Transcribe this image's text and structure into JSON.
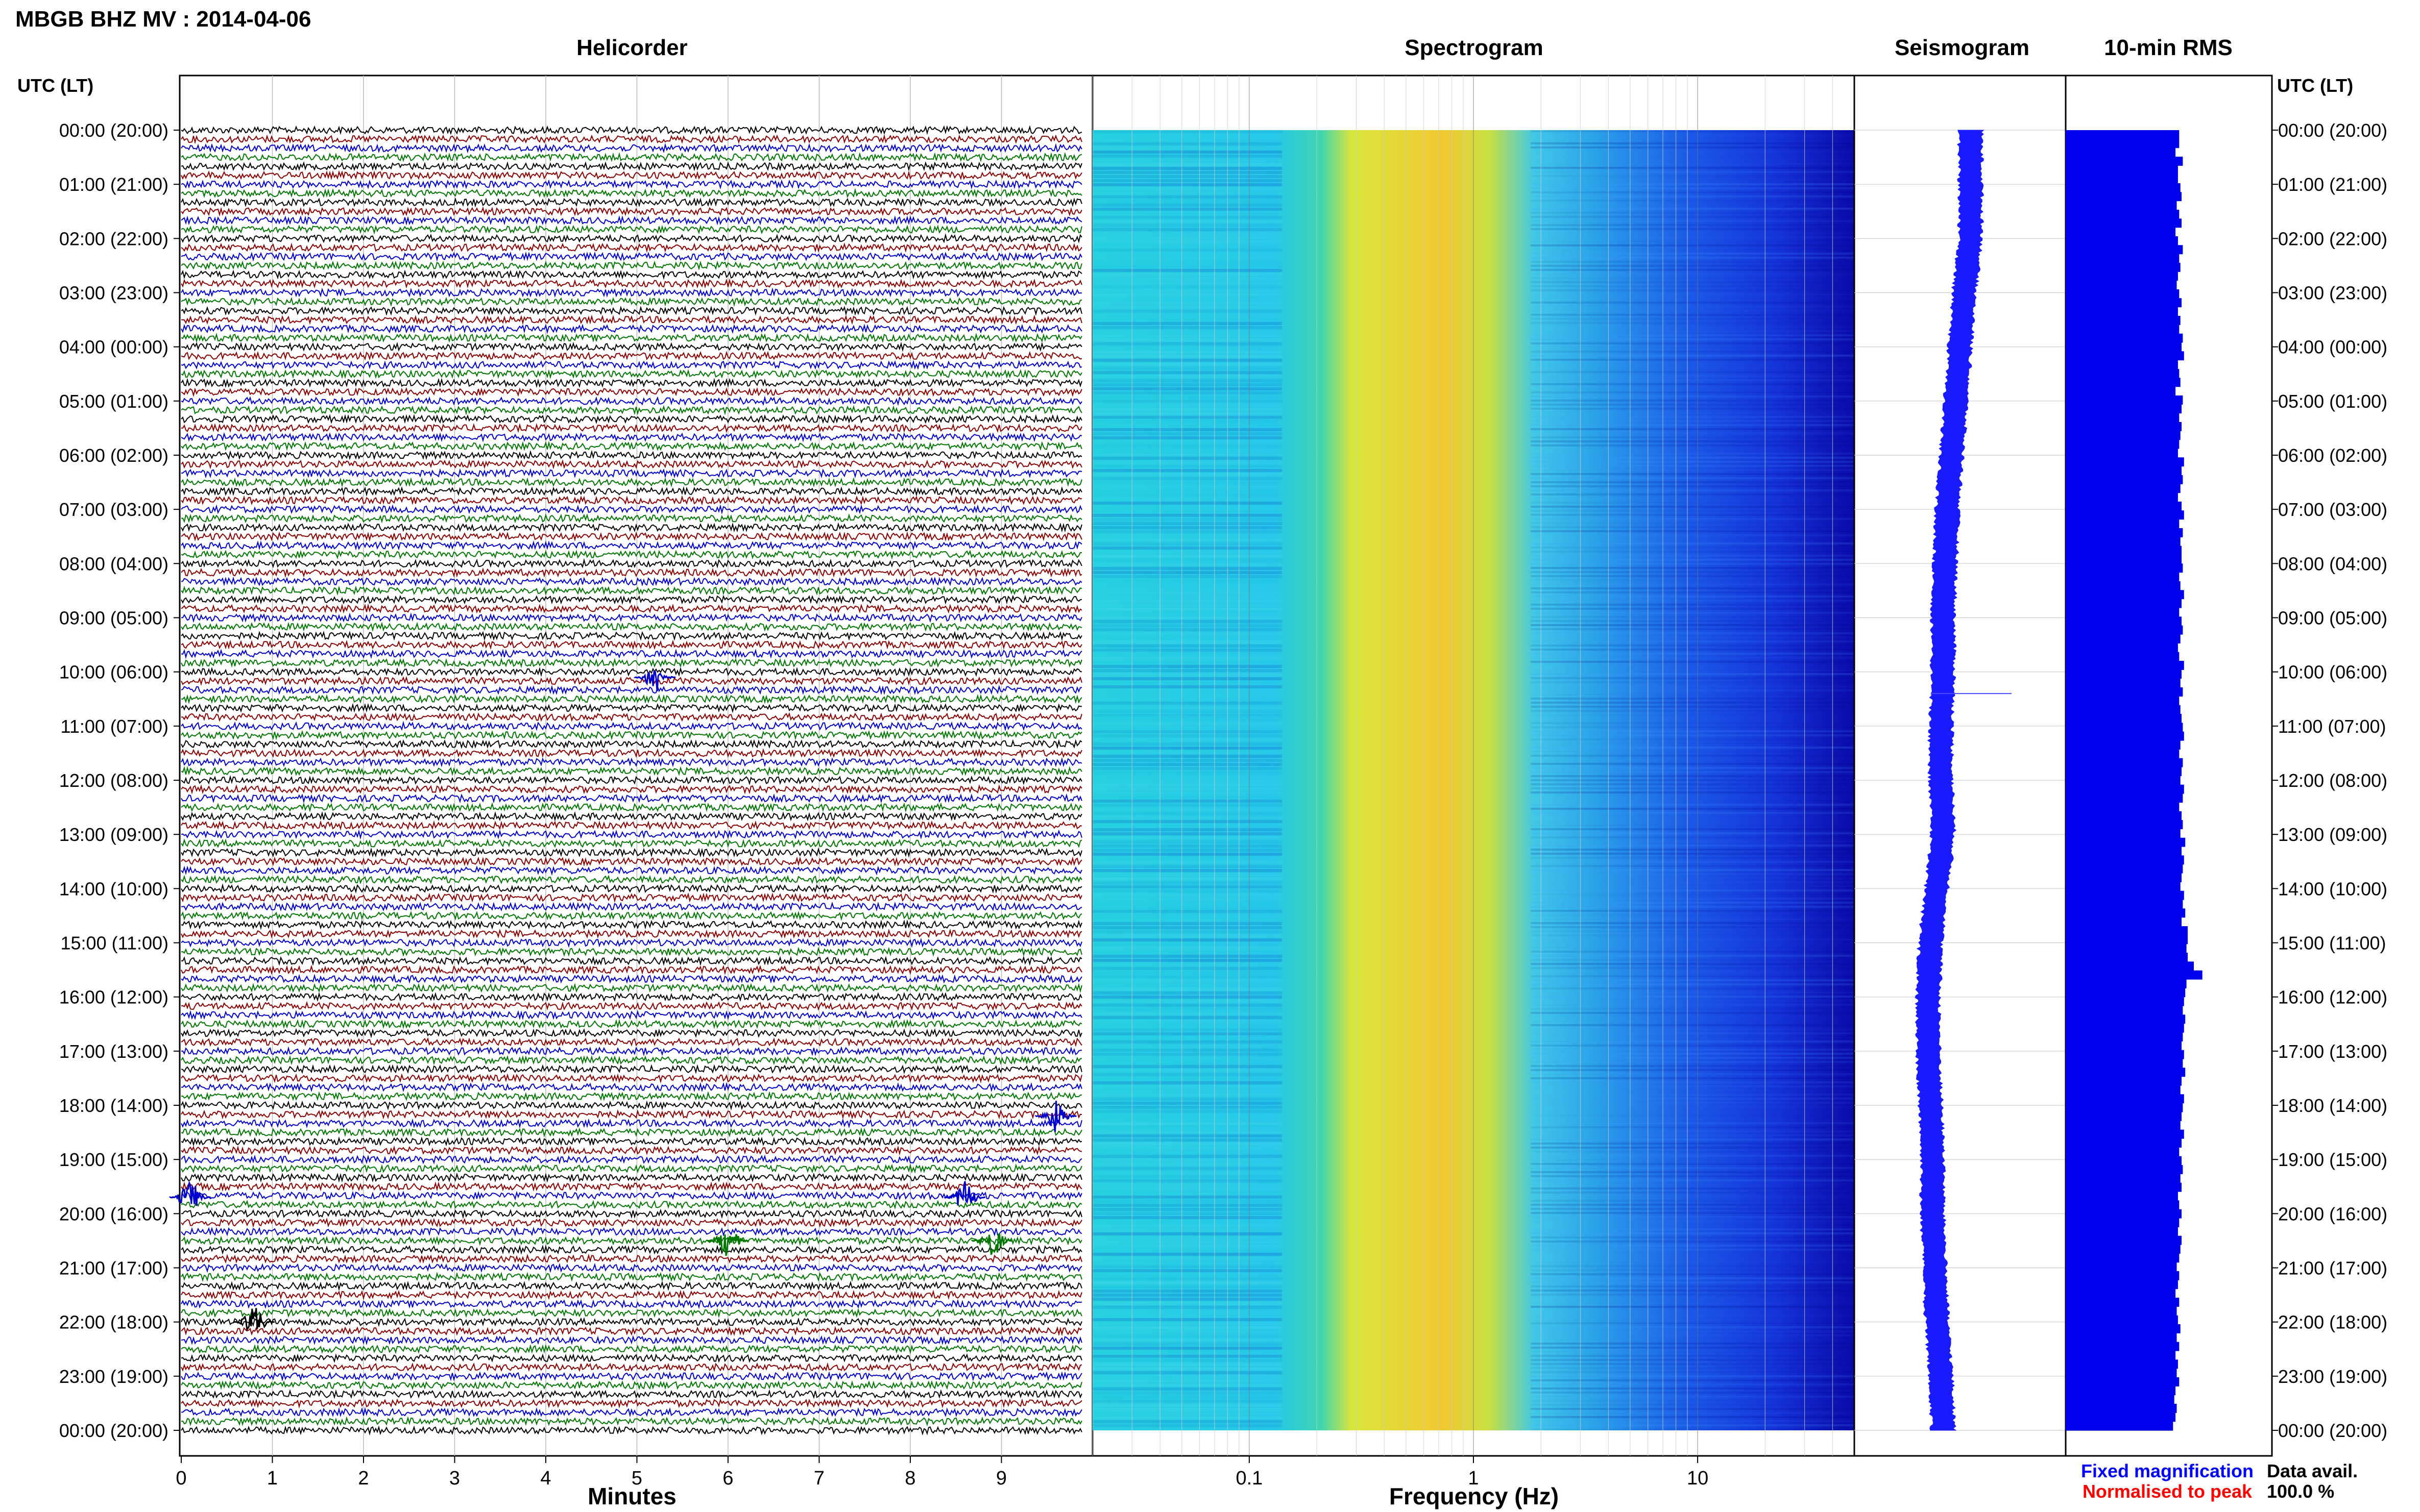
{
  "header": {
    "title": "MBGB BHZ MV : 2014-04-06",
    "panel_titles": {
      "helicorder": "Helicorder",
      "spectrogram": "Spectrogram",
      "seismogram": "Seismogram",
      "rms": "10-min RMS"
    },
    "utc_header_left": "UTC (LT)",
    "utc_header_right": "UTC (LT)"
  },
  "axes": {
    "helicorder_xlabel": "Minutes",
    "spectrogram_xlabel": "Frequency (Hz)"
  },
  "legend": {
    "fixed": "Fixed magnification",
    "normalised": "Normalised to peak"
  },
  "data_avail": {
    "label": "Data avail.",
    "value": "100.0 %"
  },
  "colors": {
    "trace_cycle": [
      "#000000",
      "#8b0000",
      "#0000cc",
      "#007700"
    ],
    "rms_bar": "#0000ee",
    "seismogram": "#1a1aff",
    "legend_fixed": "#0000ff",
    "legend_normalised": "#ff0000"
  },
  "chart_data": [
    {
      "type": "line",
      "panel": "helicorder",
      "title": "Helicorder",
      "xlabel": "Minutes",
      "x_ticks": [
        "0",
        "1",
        "2",
        "3",
        "4",
        "5",
        "6",
        "7",
        "8",
        "9"
      ],
      "xlim": [
        0,
        10
      ],
      "y_ticks": [
        "00:00 (20:00)",
        "01:00 (21:00)",
        "02:00 (22:00)",
        "03:00 (23:00)",
        "04:00 (00:00)",
        "05:00 (01:00)",
        "06:00 (02:00)",
        "07:00 (03:00)",
        "08:00 (04:00)",
        "09:00 (05:00)",
        "10:00 (06:00)",
        "11:00 (07:00)",
        "12:00 (08:00)",
        "13:00 (09:00)",
        "14:00 (10:00)",
        "15:00 (11:00)",
        "16:00 (12:00)",
        "17:00 (13:00)",
        "18:00 (14:00)",
        "19:00 (15:00)",
        "20:00 (16:00)",
        "21:00 (17:00)",
        "22:00 (18:00)",
        "23:00 (19:00)",
        "00:00 (20:00)"
      ],
      "lines_per_hour": 6,
      "events": [
        {
          "hour": 10.1,
          "minute": 5.2,
          "color": "blue"
        },
        {
          "hour": 18.2,
          "minute": 9.6,
          "color": "blue"
        },
        {
          "hour": 19.7,
          "minute": 0.1,
          "color": "blue"
        },
        {
          "hour": 19.7,
          "minute": 8.6,
          "color": "blue"
        },
        {
          "hour": 20.5,
          "minute": 6.0,
          "color": "green"
        },
        {
          "hour": 20.5,
          "minute": 8.9,
          "color": "green"
        },
        {
          "hour": 22.0,
          "minute": 0.8,
          "color": "black"
        }
      ]
    },
    {
      "type": "heatmap",
      "panel": "spectrogram",
      "title": "Spectrogram",
      "xlabel": "Frequency (Hz)",
      "x_scale": "log",
      "xlim": [
        0.02,
        50
      ],
      "x_tick_labels": [
        {
          "value": 0.1,
          "label": "0.1"
        },
        {
          "value": 1,
          "label": "1"
        },
        {
          "value": 10,
          "label": "10"
        }
      ],
      "peak_frequency_hz": 0.35,
      "colormap": "jet"
    },
    {
      "type": "line",
      "panel": "seismogram",
      "title": "Seismogram",
      "description_level": "daily trace, slow drift",
      "offset_by_hour": [
        0.05,
        0.05,
        0.05,
        0.02,
        0.0,
        -0.02,
        -0.04,
        -0.06,
        -0.07,
        -0.08,
        -0.08,
        -0.09,
        -0.09,
        -0.08,
        -0.11,
        -0.14,
        -0.15,
        -0.15,
        -0.14,
        -0.13,
        -0.13,
        -0.12,
        -0.11,
        -0.09,
        -0.08
      ]
    },
    {
      "type": "bar",
      "panel": "rms",
      "title": "10-min RMS",
      "orientation": "horizontal",
      "bins_per_hour": 6,
      "values": [
        0.93,
        0.93,
        0.9,
        0.96,
        0.92,
        0.92,
        0.94,
        0.95,
        0.91,
        0.93,
        0.95,
        0.9,
        0.92,
        0.96,
        0.93,
        0.94,
        0.92,
        0.91,
        0.93,
        0.95,
        0.92,
        0.94,
        0.93,
        0.96,
        0.95,
        0.97,
        0.92,
        0.93,
        0.94,
        0.9,
        0.96,
        0.95,
        0.93,
        0.95,
        0.94,
        0.93,
        0.92,
        0.97,
        0.95,
        0.96,
        0.94,
        0.92,
        0.95,
        0.97,
        0.93,
        0.96,
        0.94,
        0.95,
        0.95,
        0.96,
        0.93,
        0.94,
        0.97,
        0.95,
        0.93,
        0.95,
        0.96,
        0.94,
        0.92,
        0.93,
        0.97,
        0.95,
        0.94,
        0.96,
        0.93,
        0.94,
        0.95,
        0.96,
        0.97,
        0.94,
        0.93,
        0.96,
        0.95,
        0.94,
        0.97,
        0.96,
        0.93,
        0.95,
        0.96,
        0.94,
        0.98,
        0.95,
        0.97,
        0.96,
        0.95,
        0.94,
        0.97,
        0.96,
        0.98,
        0.95,
        1.0,
        1.0,
        0.99,
        1.0,
        1.05,
        1.12,
        0.99,
        0.98,
        0.97,
        0.96,
        0.98,
        0.97,
        0.96,
        0.95,
        0.97,
        0.96,
        0.98,
        0.95,
        0.94,
        0.97,
        0.96,
        0.95,
        0.94,
        0.97,
        0.95,
        0.93,
        0.95,
        0.96,
        0.94,
        0.95,
        0.92,
        0.93,
        0.95,
        0.93,
        0.92,
        0.95,
        0.94,
        0.93,
        0.91,
        0.93,
        0.92,
        0.9,
        0.93,
        0.91,
        0.92,
        0.94,
        0.91,
        0.93,
        0.9,
        0.92,
        0.91,
        0.93,
        0.9,
        0.89,
        0.91,
        0.9,
        0.88
      ]
    }
  ]
}
